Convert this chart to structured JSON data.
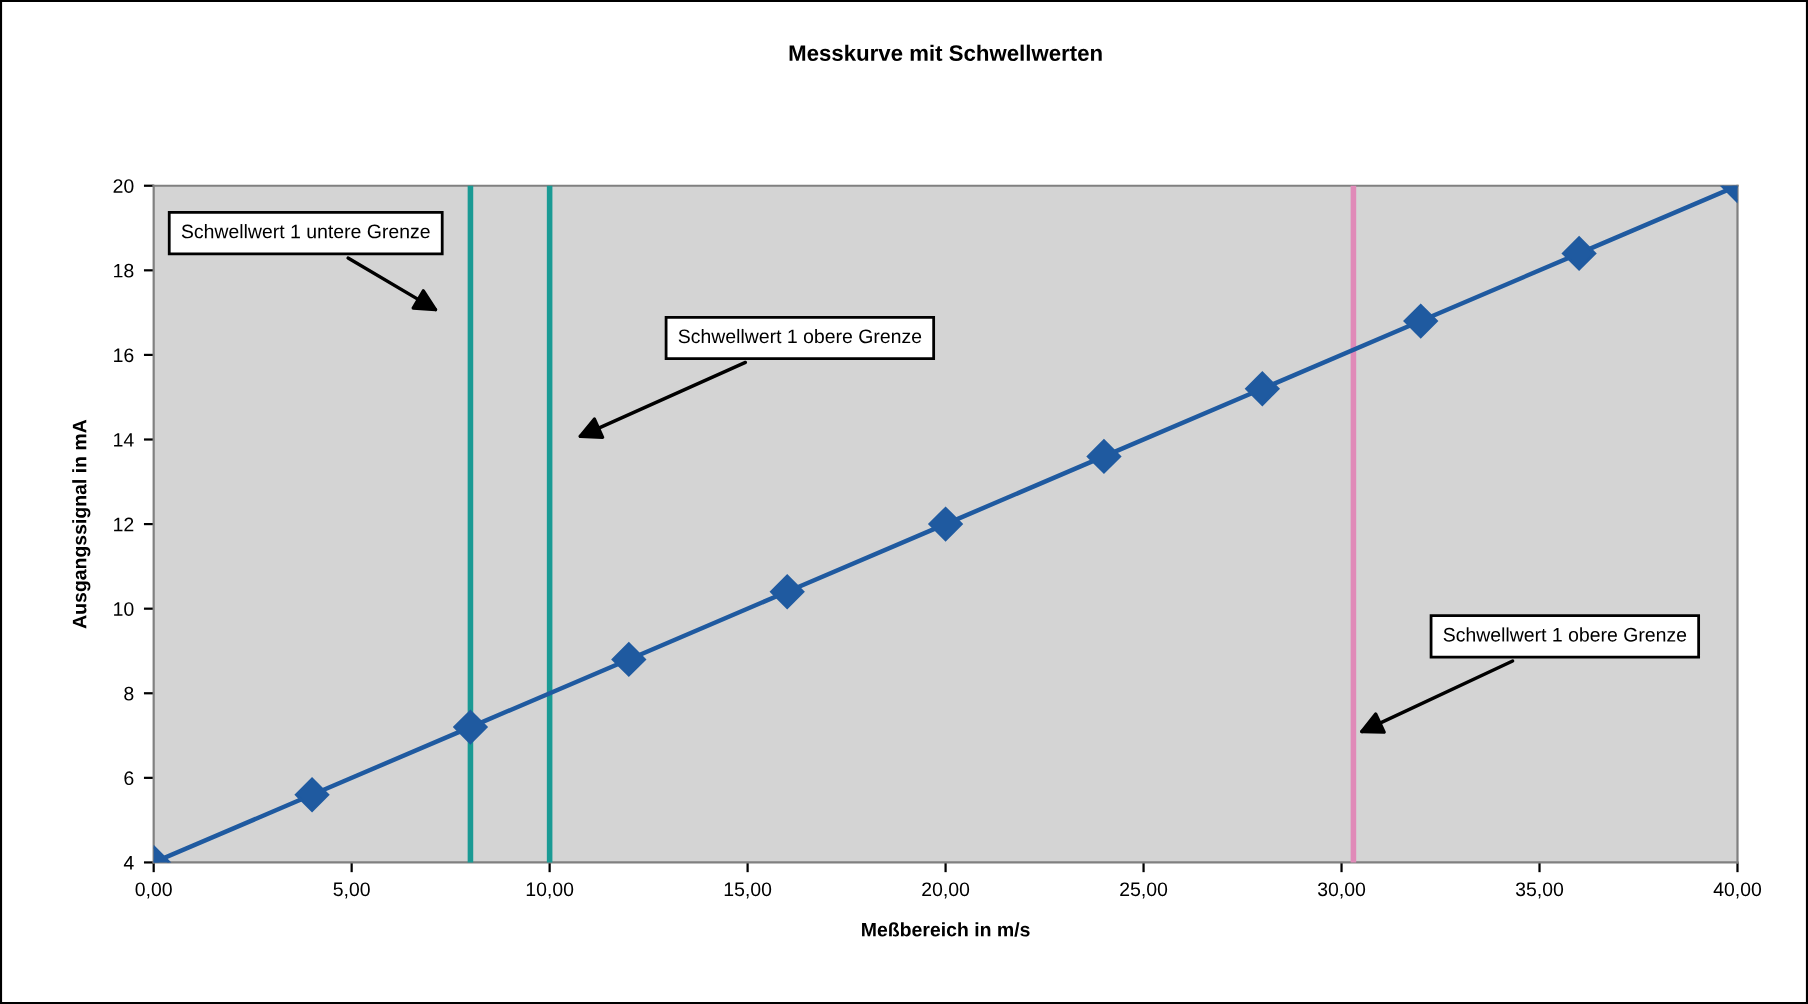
{
  "chart_data": {
    "type": "line",
    "title": "Messkurve mit Schwellwerten",
    "xlabel": "Meßbereich in m/s",
    "ylabel": "Ausgangssignal in mA",
    "x": [
      0,
      4,
      8,
      12,
      16,
      20,
      24,
      28,
      32,
      36,
      40
    ],
    "series": [
      {
        "color": "#1f5aa0",
        "values": [
          4,
          5.6,
          7.2,
          8.8,
          10.4,
          12,
          13.6,
          15.2,
          16.8,
          18.4,
          20
        ]
      }
    ],
    "marker": "diamond",
    "line_style": "solid",
    "grid": false,
    "xlim": [
      0,
      40
    ],
    "ylim": [
      4,
      20
    ],
    "xticks": [
      {
        "value": 0,
        "label": "0,00"
      },
      {
        "value": 5,
        "label": "5,00"
      },
      {
        "value": 10,
        "label": "10,00"
      },
      {
        "value": 15,
        "label": "15,00"
      },
      {
        "value": 20,
        "label": "20,00"
      },
      {
        "value": 25,
        "label": "25,00"
      },
      {
        "value": 30,
        "label": "30,00"
      },
      {
        "value": 35,
        "label": "35,00"
      },
      {
        "value": 40,
        "label": "40,00"
      }
    ],
    "yticks": [
      4,
      6,
      8,
      10,
      12,
      14,
      16,
      18,
      20
    ],
    "ref_lines": [
      {
        "axis": "x",
        "value": 8,
        "color": "#1a9a94"
      },
      {
        "axis": "x",
        "value": 10,
        "color": "#1a9a94"
      },
      {
        "axis": "x",
        "value": 30.3,
        "color": "#e08ab8"
      }
    ],
    "annotations": [
      "Schwellwert 1 untere Grenze",
      "Schwellwert 1 obere Grenze",
      {
        "text": "Schwellwert 1 obere Grenze",
        "x": 30.3,
        "y": 7
      }
    ]
  }
}
